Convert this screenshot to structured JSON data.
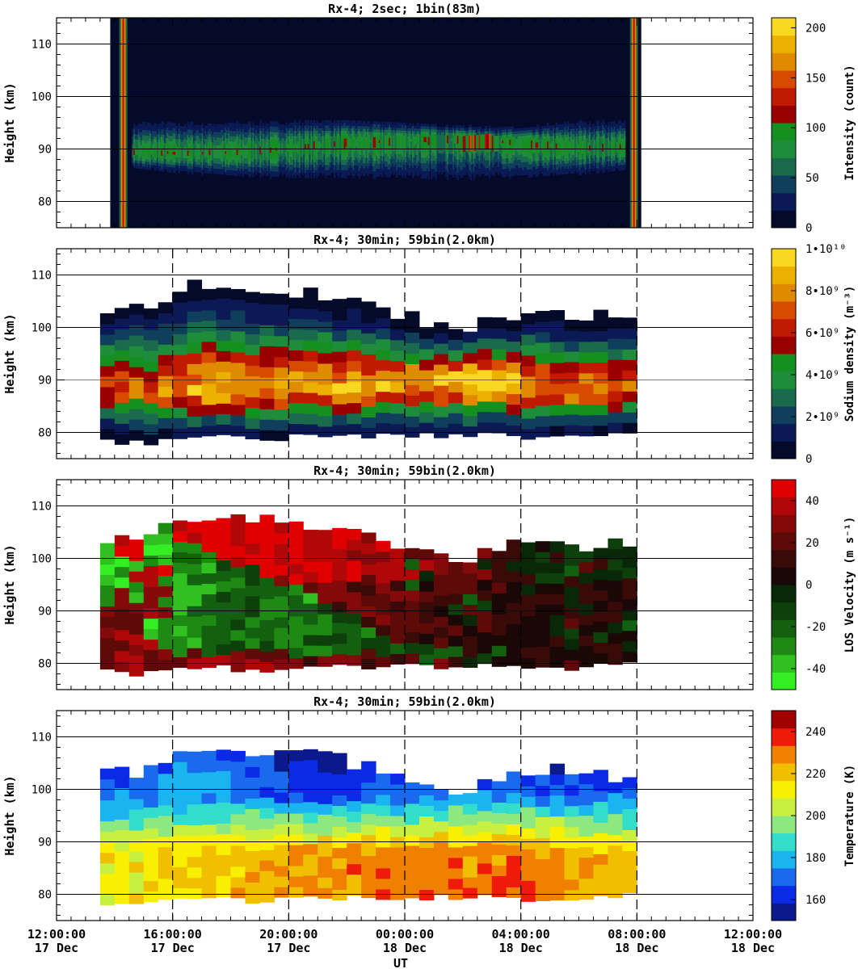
{
  "chart_data": [
    {
      "type": "heatmap",
      "title": "Rx-4;  2sec; 1bin(83m)",
      "ylabel": "Height (km)",
      "ylim": [
        75,
        115
      ],
      "yticks": [
        80,
        90,
        100,
        110
      ],
      "xlim_hours": [
        0,
        24
      ],
      "colorbar": {
        "label": "Intensity (count)",
        "ticks": [
          "0",
          "50",
          "100",
          "150",
          "200"
        ],
        "range": [
          0,
          210
        ],
        "colors": [
          "#050a2a",
          "#0b1a55",
          "#0f3f5a",
          "#1a6a4e",
          "#1e8c3a",
          "#159020",
          "#9a0000",
          "#c01a00",
          "#d84a00",
          "#e08a00",
          "#ecb000",
          "#f8d820"
        ]
      },
      "vertical_lines_hours": [],
      "data_extent_hours": [
        1.85,
        20.15
      ],
      "na_layer": {
        "peak_height_km": [
          [
            2.5,
            89
          ],
          [
            6,
            89
          ],
          [
            8,
            90
          ],
          [
            10,
            91
          ],
          [
            14,
            92
          ],
          [
            16,
            91
          ],
          [
            18,
            90
          ],
          [
            19.5,
            90
          ]
        ],
        "top_km": [
          [
            2.5,
            97
          ],
          [
            6,
            97
          ],
          [
            8,
            97
          ],
          [
            10,
            97
          ],
          [
            14,
            95
          ],
          [
            16,
            95
          ],
          [
            18,
            97
          ],
          [
            19.5,
            97
          ]
        ],
        "bottom_km": [
          [
            2.5,
            85
          ],
          [
            4,
            84
          ],
          [
            6,
            83
          ],
          [
            8,
            82
          ],
          [
            10,
            82
          ],
          [
            14,
            81
          ],
          [
            16,
            82
          ],
          [
            18,
            83
          ],
          [
            19.5,
            84
          ]
        ],
        "peak_count": 110,
        "edge_spikes_hours": [
          2.3,
          19.9
        ]
      }
    },
    {
      "type": "heatmap",
      "title": "Rx-4; 30min; 59bin(2.0km)",
      "ylabel": "Height (km)",
      "ylim": [
        75,
        115
      ],
      "yticks": [
        80,
        90,
        100,
        110
      ],
      "xlim_hours": [
        0,
        24
      ],
      "vertical_lines_hours": [
        4,
        8,
        12,
        16,
        20
      ],
      "colorbar": {
        "label": "Sodium density (m⁻³)",
        "ticks": [
          "0",
          "2•10⁹",
          "4•10⁹",
          "6•10⁹",
          "8•10⁹",
          "1•10¹⁰"
        ],
        "range": [
          0,
          10
        ],
        "colors": [
          "#050a2a",
          "#0b1a55",
          "#0f3f5a",
          "#1a6a4e",
          "#1e8c3a",
          "#159020",
          "#9a0000",
          "#c01a00",
          "#d84a00",
          "#e08a00",
          "#ecb000",
          "#f8d820"
        ]
      },
      "data_extent_hours": [
        1.5,
        20
      ],
      "profile": {
        "peak_density_1e9": [
          [
            1.5,
            6.5
          ],
          [
            4,
            7.5
          ],
          [
            5,
            8.6
          ],
          [
            7,
            7.8
          ],
          [
            9,
            8.2
          ],
          [
            10.5,
            8.6
          ],
          [
            12,
            7.6
          ],
          [
            14.2,
            10
          ],
          [
            15,
            9.2
          ],
          [
            17,
            8
          ],
          [
            19,
            7.3
          ],
          [
            20,
            7
          ]
        ],
        "peak_height_km": [
          [
            1.5,
            89
          ],
          [
            4,
            88
          ],
          [
            6,
            88
          ],
          [
            8,
            88
          ],
          [
            10,
            88
          ],
          [
            12,
            89
          ],
          [
            14,
            90
          ],
          [
            16,
            89
          ],
          [
            18,
            88
          ],
          [
            20,
            88
          ]
        ],
        "top_km": [
          [
            1.5,
            102
          ],
          [
            3,
            103
          ],
          [
            4,
            105
          ],
          [
            5,
            107.5
          ],
          [
            7,
            106
          ],
          [
            9,
            105
          ],
          [
            10.5,
            104
          ],
          [
            12,
            101
          ],
          [
            14,
            99
          ],
          [
            16,
            102
          ],
          [
            18,
            102
          ],
          [
            20,
            101
          ]
        ],
        "bottom_km": [
          [
            1.5,
            78.5
          ],
          [
            3,
            78
          ],
          [
            5,
            79.5
          ],
          [
            7,
            78.5
          ],
          [
            9,
            79.5
          ],
          [
            11,
            79.5
          ],
          [
            13,
            79.5
          ],
          [
            15,
            79.5
          ],
          [
            17,
            79
          ],
          [
            19,
            79.5
          ],
          [
            20,
            80
          ]
        ]
      }
    },
    {
      "type": "heatmap",
      "title": "Rx-4; 30min; 59bin(2.0km)",
      "ylabel": "Height (km)",
      "ylim": [
        75,
        115
      ],
      "yticks": [
        80,
        90,
        100,
        110
      ],
      "xlim_hours": [
        0,
        24
      ],
      "vertical_lines_hours": [
        4,
        8,
        12,
        16,
        20
      ],
      "colorbar": {
        "label": "LOS Velocity (m s⁻¹)",
        "ticks": [
          "-40",
          "-20",
          "0",
          "20",
          "40"
        ],
        "range": [
          -50,
          50
        ],
        "colors": [
          "#33ee22",
          "#30c020",
          "#1e8a14",
          "#136010",
          "#0d400a",
          "#082808",
          "#1a0806",
          "#3a0a08",
          "#5e0a08",
          "#840a0a",
          "#b00808",
          "#e00000"
        ]
      },
      "data_extent_hours": [
        1.5,
        20
      ],
      "pattern": {
        "note_free": true,
        "up_band_boundary_km": [
          [
            4,
            104
          ],
          [
            6,
            100
          ],
          [
            8,
            95
          ],
          [
            10,
            90
          ],
          [
            11,
            86
          ],
          [
            12,
            84
          ]
        ],
        "down_values_mps": [
          [
            4,
            45
          ],
          [
            8,
            45
          ],
          [
            12,
            30
          ],
          [
            16,
            15
          ],
          [
            20,
            10
          ]
        ],
        "up_values_mps": [
          [
            3,
            -40
          ],
          [
            6,
            -20
          ],
          [
            9,
            -25
          ],
          [
            11,
            -15
          ],
          [
            17,
            -10
          ]
        ]
      }
    },
    {
      "type": "heatmap",
      "title": "Rx-4; 30min; 59bin(2.0km)",
      "ylabel": "Height (km)",
      "xlabel": "UT",
      "ylim": [
        75,
        115
      ],
      "yticks": [
        80,
        90,
        100,
        110
      ],
      "xlim_hours": [
        0,
        24
      ],
      "vertical_lines_hours": [
        4,
        8,
        12,
        16,
        20
      ],
      "colorbar": {
        "label": "Temperature (K)",
        "ticks": [
          "160",
          "180",
          "200",
          "220",
          "240"
        ],
        "range": [
          150,
          250
        ],
        "colors": [
          "#0a1a8c",
          "#0a2ae6",
          "#1a6aee",
          "#1ab4f0",
          "#33ddcc",
          "#8ee880",
          "#c8f040",
          "#f8f000",
          "#f0c000",
          "#f08000",
          "#f01a0a",
          "#a00000"
        ]
      },
      "data_extent_hours": [
        1.5,
        20
      ],
      "profile": {
        "top_temp_K": [
          [
            1.5,
            165
          ],
          [
            4,
            172
          ],
          [
            6,
            168
          ],
          [
            8,
            160
          ],
          [
            10,
            158
          ],
          [
            12,
            168
          ],
          [
            14,
            172
          ],
          [
            16,
            165
          ],
          [
            18,
            163
          ],
          [
            20,
            168
          ]
        ],
        "peak_temp_K": [
          [
            1.5,
            212
          ],
          [
            4,
            215
          ],
          [
            6,
            222
          ],
          [
            8,
            224
          ],
          [
            10,
            229
          ],
          [
            12,
            228
          ],
          [
            14,
            226
          ],
          [
            16,
            232
          ],
          [
            18,
            222
          ],
          [
            20,
            220
          ]
        ],
        "bottom_temp_K": [
          [
            1.5,
            210
          ],
          [
            5,
            218
          ],
          [
            10,
            228
          ],
          [
            13,
            234
          ],
          [
            16,
            232
          ],
          [
            20,
            220
          ]
        ]
      }
    }
  ],
  "x_axis": {
    "label": "UT",
    "ticks": [
      {
        "time": "12:00:00",
        "date": "17 Dec"
      },
      {
        "time": "16:00:00",
        "date": "17 Dec"
      },
      {
        "time": "20:00:00",
        "date": "17 Dec"
      },
      {
        "time": "00:00:00",
        "date": "18 Dec"
      },
      {
        "time": "04:00:00",
        "date": "18 Dec"
      },
      {
        "time": "08:00:00",
        "date": "18 Dec"
      },
      {
        "time": "12:00:00",
        "date": "18 Dec"
      }
    ]
  }
}
